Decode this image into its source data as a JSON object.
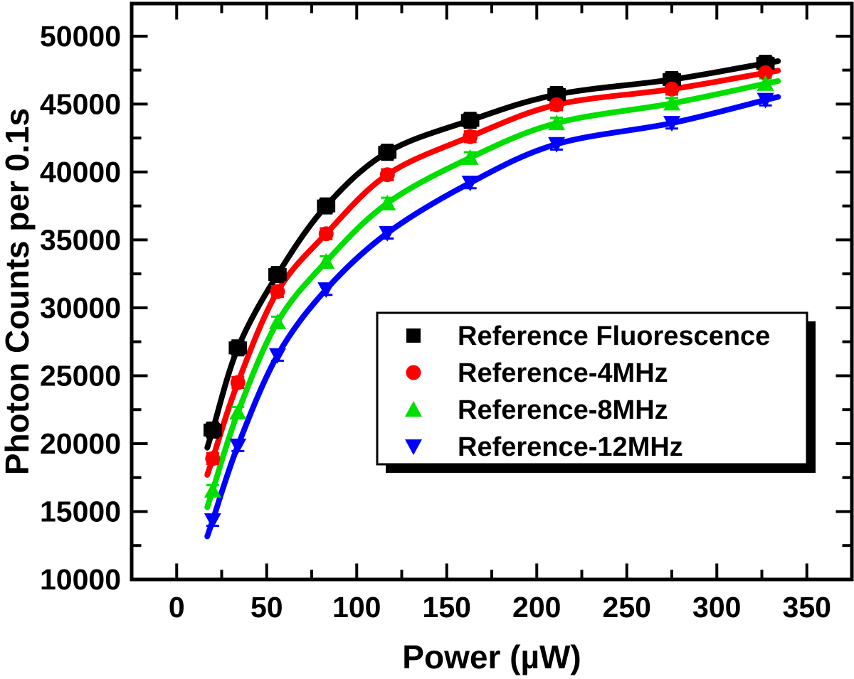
{
  "figure": {
    "background": "#FFFFFF",
    "frame_color": "#000000"
  },
  "chart_data": {
    "type": "scatter",
    "title": "",
    "xlabel": "Power (µW)",
    "ylabel": "Photon Counts per 0.1s",
    "xlim": [
      -25,
      375
    ],
    "ylim": [
      10000,
      52400
    ],
    "x_tick_labels": [
      "0",
      "50",
      "100",
      "150",
      "200",
      "250",
      "300",
      "350"
    ],
    "x_ticks": [
      0,
      50,
      100,
      150,
      200,
      250,
      300,
      350
    ],
    "x_minor_ticks": [
      25,
      75,
      125,
      175,
      225,
      275,
      325
    ],
    "y_tick_labels": [
      "10000",
      "15000",
      "20000",
      "25000",
      "30000",
      "35000",
      "40000",
      "45000",
      "50000"
    ],
    "y_ticks": [
      10000,
      15000,
      20000,
      25000,
      30000,
      35000,
      40000,
      45000,
      50000
    ],
    "y_minor_ticks": [
      12500,
      17500,
      22500,
      27500,
      32500,
      37500,
      42500,
      47500
    ],
    "grid": false,
    "legend_position": "inside-center-right",
    "x": [
      20,
      34,
      56,
      83,
      117,
      163,
      211,
      275,
      327
    ],
    "series": [
      {
        "name": "Reference Fluorescence",
        "color": "#000000",
        "marker": "square",
        "values": [
          21000,
          27050,
          32450,
          37500,
          41450,
          43800,
          45700,
          46800,
          48000
        ],
        "y_error": 550,
        "x_error": 4.5,
        "fit_line": true
      },
      {
        "name": "Reference-4MHz",
        "color": "#FF0000",
        "marker": "circle",
        "values": [
          18900,
          24500,
          31200,
          35450,
          39800,
          42600,
          44950,
          46100,
          47300
        ],
        "y_error": 400,
        "x_error": 0,
        "fit_line": true
      },
      {
        "name": "Reference-8MHz",
        "color": "#00DF00",
        "marker": "triangle-up",
        "values": [
          16550,
          22300,
          28950,
          33400,
          37700,
          41050,
          43600,
          45050,
          46500
        ],
        "y_error": 400,
        "x_error": 0,
        "fit_line": true
      },
      {
        "name": "Reference-12MHz",
        "color": "#0000FF",
        "marker": "triangle-down",
        "values": [
          14350,
          19850,
          26500,
          31350,
          35500,
          39200,
          42050,
          43600,
          45300
        ],
        "y_error": 400,
        "x_error": 0,
        "fit_line": true
      }
    ]
  }
}
